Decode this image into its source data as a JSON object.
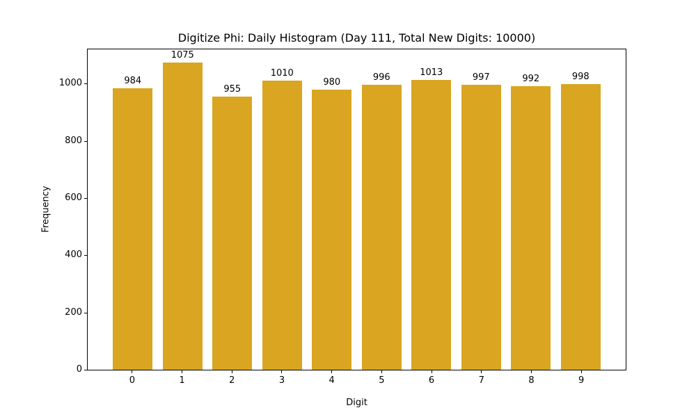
{
  "chart_data": {
    "type": "bar",
    "title": "Digitize Phi: Daily Histogram (Day 111, Total New Digits: 10000)",
    "xlabel": "Digit",
    "ylabel": "Frequency",
    "categories": [
      "0",
      "1",
      "2",
      "3",
      "4",
      "5",
      "6",
      "7",
      "8",
      "9"
    ],
    "values": [
      984,
      1075,
      955,
      1010,
      980,
      996,
      1013,
      997,
      992,
      998
    ],
    "bar_labels": [
      "984",
      "1075",
      "955",
      "1010",
      "980",
      "996",
      "1013",
      "997",
      "992",
      "998"
    ],
    "ylim": [
      0,
      1120
    ],
    "yticks": [
      0,
      200,
      400,
      600,
      800,
      1000
    ],
    "bar_color": "#DAA520",
    "grid": false,
    "legend_position": "none",
    "background_color": "#ffffff",
    "axis_color": "#000000"
  }
}
